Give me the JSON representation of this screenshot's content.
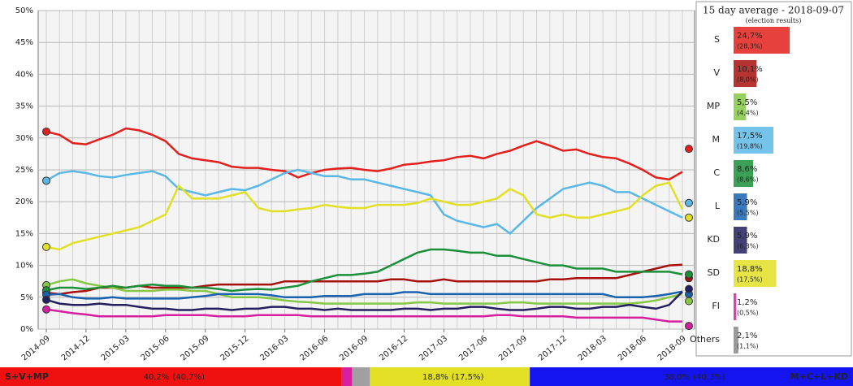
{
  "chart_data": {
    "type": "line",
    "x": [
      "2014-09",
      "2014-10",
      "2014-11",
      "2014-12",
      "2015-01",
      "2015-02",
      "2015-03",
      "2015-04",
      "2015-05",
      "2015-06",
      "2015-07",
      "2015-08",
      "2015-09",
      "2015-10",
      "2015-11",
      "2015-12",
      "2016-01",
      "2016-02",
      "2016-03",
      "2016-04",
      "2016-05",
      "2016-06",
      "2016-07",
      "2016-08",
      "2016-09",
      "2016-10",
      "2016-11",
      "2016-12",
      "2017-01",
      "2017-02",
      "2017-03",
      "2017-04",
      "2017-05",
      "2017-06",
      "2017-07",
      "2017-08",
      "2017-09",
      "2017-10",
      "2017-11",
      "2017-12",
      "2018-01",
      "2018-02",
      "2018-03",
      "2018-04",
      "2018-05",
      "2018-06",
      "2018-07",
      "2018-08",
      "2018-09"
    ],
    "xticks": [
      "2014-09",
      "2014-12",
      "2015-03",
      "2015-06",
      "2015-09",
      "2015-12",
      "2016-03",
      "2016-06",
      "2016-09",
      "2016-12",
      "2017-03",
      "2017-06",
      "2017-09",
      "2017-12",
      "2018-03",
      "2018-06",
      "2018-09"
    ],
    "ylim": [
      0,
      50
    ],
    "yticks": [
      {
        "value": 0,
        "label": "0%"
      },
      {
        "value": 5,
        "label": "5%"
      },
      {
        "value": 10,
        "label": "10%"
      },
      {
        "value": 15,
        "label": "15%"
      },
      {
        "value": 20,
        "label": "20%"
      },
      {
        "value": 25,
        "label": "25%"
      },
      {
        "value": 30,
        "label": "30%"
      },
      {
        "value": 35,
        "label": "35%"
      },
      {
        "value": 40,
        "label": "40%"
      },
      {
        "value": 45,
        "label": "45%"
      },
      {
        "value": 50,
        "label": "50%"
      }
    ],
    "grid": true,
    "panel_title": "15 day average - 2018-09-07",
    "panel_subtitle": "(election results)",
    "series": [
      {
        "name": "S",
        "color": "#e3201c",
        "average": 24.7,
        "average_label": "24,7%",
        "election": 28.3,
        "election_label": "(28,3%)",
        "values": [
          31.0,
          30.5,
          29.2,
          29.0,
          29.8,
          30.5,
          31.5,
          31.2,
          30.5,
          29.5,
          27.5,
          26.8,
          26.5,
          26.2,
          25.5,
          25.3,
          25.3,
          25.0,
          24.8,
          23.8,
          24.5,
          25.0,
          25.2,
          25.3,
          25.0,
          24.8,
          25.2,
          25.8,
          26.0,
          26.3,
          26.5,
          27.0,
          27.2,
          26.8,
          27.5,
          28.0,
          28.8,
          29.5,
          28.8,
          28.0,
          28.2,
          27.5,
          27.0,
          26.8,
          26.0,
          25.0,
          23.8,
          23.5,
          24.7
        ]
      },
      {
        "name": "V",
        "color": "#a8100e",
        "average": 10.1,
        "average_label": "10,1%",
        "election": 8.0,
        "election_label": "(8,0%)",
        "values": [
          5.7,
          5.5,
          5.8,
          6.0,
          6.5,
          6.5,
          6.5,
          6.8,
          6.5,
          6.5,
          6.5,
          6.5,
          6.8,
          7.0,
          7.0,
          7.0,
          7.0,
          7.0,
          7.5,
          7.5,
          7.5,
          7.5,
          7.5,
          7.5,
          7.5,
          7.5,
          7.8,
          7.8,
          7.5,
          7.5,
          7.8,
          7.5,
          7.5,
          7.5,
          7.5,
          7.5,
          7.5,
          7.5,
          7.8,
          7.8,
          8.0,
          8.0,
          8.0,
          8.0,
          8.5,
          9.0,
          9.5,
          10.0,
          10.1
        ]
      },
      {
        "name": "MP",
        "color": "#84c843",
        "average": 5.5,
        "average_label": "5,5%",
        "election": 4.4,
        "election_label": "(4,4%)",
        "values": [
          6.9,
          7.5,
          7.8,
          7.2,
          6.8,
          6.5,
          6.0,
          6.0,
          6.0,
          6.2,
          6.2,
          6.0,
          6.0,
          5.5,
          5.0,
          5.0,
          5.0,
          4.8,
          4.5,
          4.3,
          4.2,
          4.0,
          4.0,
          4.0,
          4.0,
          4.0,
          4.0,
          4.0,
          4.2,
          4.2,
          4.0,
          4.0,
          4.0,
          4.0,
          4.0,
          4.2,
          4.2,
          4.0,
          4.0,
          4.0,
          4.0,
          4.0,
          4.0,
          4.0,
          4.0,
          4.2,
          4.5,
          5.0,
          5.5
        ]
      },
      {
        "name": "M",
        "color": "#5ab8e6",
        "average": 17.5,
        "average_label": "17,5%",
        "election": 19.8,
        "election_label": "(19,8%)",
        "values": [
          23.3,
          24.5,
          24.8,
          24.5,
          24.0,
          23.8,
          24.2,
          24.5,
          24.8,
          24.0,
          22.0,
          21.5,
          21.0,
          21.5,
          22.0,
          21.8,
          22.5,
          23.5,
          24.5,
          25.0,
          24.5,
          24.0,
          24.0,
          23.5,
          23.5,
          23.0,
          22.5,
          22.0,
          21.5,
          21.0,
          18.0,
          17.0,
          16.5,
          16.0,
          16.5,
          15.0,
          17.0,
          19.0,
          20.5,
          22.0,
          22.5,
          23.0,
          22.5,
          21.5,
          21.5,
          20.5,
          19.5,
          18.5,
          17.5
        ]
      },
      {
        "name": "C",
        "color": "#1a9038",
        "average": 8.6,
        "average_label": "8,6%",
        "election": 8.6,
        "election_label": "(8,6%)",
        "values": [
          6.1,
          6.5,
          6.5,
          6.3,
          6.5,
          6.8,
          6.5,
          6.8,
          7.0,
          6.8,
          6.8,
          6.5,
          6.5,
          6.3,
          6.0,
          6.2,
          6.3,
          6.2,
          6.5,
          6.8,
          7.5,
          8.0,
          8.5,
          8.5,
          8.7,
          9.0,
          10.0,
          11.0,
          12.0,
          12.5,
          12.5,
          12.3,
          12.0,
          12.0,
          11.5,
          11.5,
          11.0,
          10.5,
          10.0,
          10.0,
          9.5,
          9.5,
          9.5,
          9.0,
          9.0,
          9.0,
          9.0,
          9.0,
          8.6
        ]
      },
      {
        "name": "L",
        "color": "#1a62b0",
        "average": 5.9,
        "average_label": "5,9%",
        "election": 5.5,
        "election_label": "(5,5%)",
        "values": [
          5.4,
          5.5,
          5.0,
          4.8,
          4.8,
          5.0,
          4.8,
          4.8,
          4.8,
          4.8,
          4.8,
          5.0,
          5.2,
          5.5,
          5.5,
          5.5,
          5.5,
          5.3,
          5.0,
          5.0,
          5.0,
          5.2,
          5.2,
          5.2,
          5.5,
          5.5,
          5.5,
          5.8,
          5.8,
          5.5,
          5.5,
          5.5,
          5.5,
          5.5,
          5.5,
          5.5,
          5.5,
          5.5,
          5.5,
          5.5,
          5.5,
          5.5,
          5.5,
          5.0,
          5.0,
          5.0,
          5.2,
          5.5,
          5.9
        ]
      },
      {
        "name": "KD",
        "color": "#24205e",
        "average": 5.9,
        "average_label": "5,9%",
        "election": 6.3,
        "election_label": "(6,3%)",
        "values": [
          4.6,
          4.0,
          3.8,
          3.8,
          4.0,
          3.8,
          3.8,
          3.5,
          3.2,
          3.2,
          3.0,
          3.0,
          3.2,
          3.2,
          3.0,
          3.2,
          3.2,
          3.5,
          3.5,
          3.2,
          3.2,
          3.0,
          3.2,
          3.0,
          3.0,
          3.0,
          3.0,
          3.2,
          3.2,
          3.0,
          3.2,
          3.2,
          3.5,
          3.5,
          3.2,
          3.0,
          3.0,
          3.2,
          3.5,
          3.5,
          3.2,
          3.2,
          3.5,
          3.5,
          3.8,
          3.5,
          3.2,
          3.8,
          5.9
        ]
      },
      {
        "name": "SD",
        "color": "#e2e024",
        "average": 18.8,
        "average_label": "18,8%",
        "election": 17.5,
        "election_label": "(17,5%)",
        "values": [
          12.9,
          12.5,
          13.5,
          14.0,
          14.5,
          15.0,
          15.5,
          16.0,
          17.0,
          18.0,
          22.5,
          20.5,
          20.5,
          20.5,
          21.0,
          21.5,
          19.0,
          18.5,
          18.5,
          18.8,
          19.0,
          19.5,
          19.2,
          19.0,
          19.0,
          19.5,
          19.5,
          19.5,
          19.8,
          20.5,
          20.0,
          19.5,
          19.5,
          20.0,
          20.5,
          22.0,
          21.0,
          18.0,
          17.5,
          18.0,
          17.5,
          17.5,
          18.0,
          18.5,
          19.0,
          21.0,
          22.5,
          23.0,
          18.8
        ]
      },
      {
        "name": "FI",
        "color": "#d61fa0",
        "average": 1.2,
        "average_label": "1,2%",
        "election": 0.5,
        "election_label": "(0,5%)",
        "values": [
          3.1,
          2.8,
          2.5,
          2.3,
          2.0,
          2.0,
          2.0,
          2.0,
          2.0,
          2.2,
          2.2,
          2.2,
          2.2,
          2.0,
          2.0,
          2.0,
          2.2,
          2.2,
          2.2,
          2.2,
          2.0,
          2.0,
          2.0,
          2.0,
          2.0,
          2.0,
          2.0,
          2.0,
          2.0,
          2.0,
          2.0,
          2.0,
          2.0,
          2.0,
          2.2,
          2.2,
          2.0,
          2.0,
          2.0,
          2.0,
          1.8,
          1.8,
          1.8,
          1.8,
          1.8,
          1.8,
          1.5,
          1.2,
          1.2
        ]
      },
      {
        "name": "Others",
        "color": "#888888",
        "average": 2.1,
        "average_label": "2,1%",
        "election": 1.1,
        "election_label": "(1,1%)"
      }
    ],
    "blocs": [
      {
        "name": "S+V+MP",
        "color": "#f01010",
        "value": 40.2,
        "value_label": "40,2%",
        "election": 40.7,
        "election_label": "(40,7%)"
      },
      {
        "color": "#d61fa0",
        "value": 1.2
      },
      {
        "color": "#a0a0a0",
        "value": 2.1
      },
      {
        "color": "#e2e024",
        "value": 18.8,
        "value_label": "18,8%",
        "election": 17.5,
        "election_label": "(17,5%)"
      },
      {
        "name": "M+C+L+KD",
        "color": "#1414f0",
        "value": 38.0,
        "value_label": "38,0%",
        "election": 40.3,
        "election_label": "(40,3%)"
      }
    ]
  }
}
